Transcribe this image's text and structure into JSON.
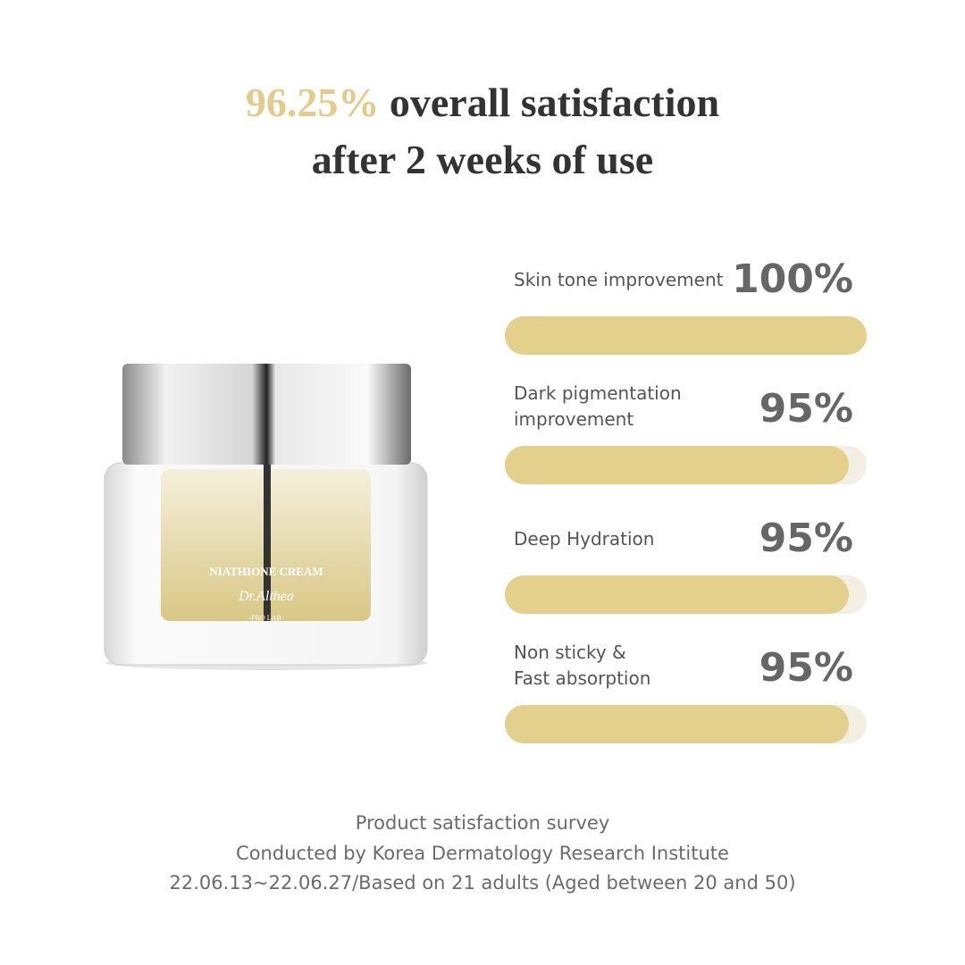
{
  "headline": {
    "highlight": "96.25%",
    "text": "overall satisfaction",
    "line2": "after 2 weeks of use"
  },
  "product": {
    "name": "NIATHIONE CREAM",
    "brand": "Dr.Althea",
    "sub": "-PRO LAB-"
  },
  "chart_data": {
    "type": "bar",
    "orientation": "horizontal",
    "categories": [
      "Skin tone improvement",
      "Dark pigmentation\nimprovement",
      "Deep Hydration",
      "Non sticky &\nFast absorption"
    ],
    "values": [
      100,
      95,
      95,
      95
    ],
    "value_labels": [
      "100%",
      "95%",
      "95%",
      "95%"
    ],
    "xlim": [
      0,
      100
    ],
    "color": "#e3d08c",
    "track_color": "#f3efe2"
  },
  "footnote": [
    "Product satisfaction survey",
    "Conducted by Korea Dermatology Research Institute",
    "22.06.13~22.06.27/Based on 21 adults (Aged between 20 and 50)"
  ]
}
